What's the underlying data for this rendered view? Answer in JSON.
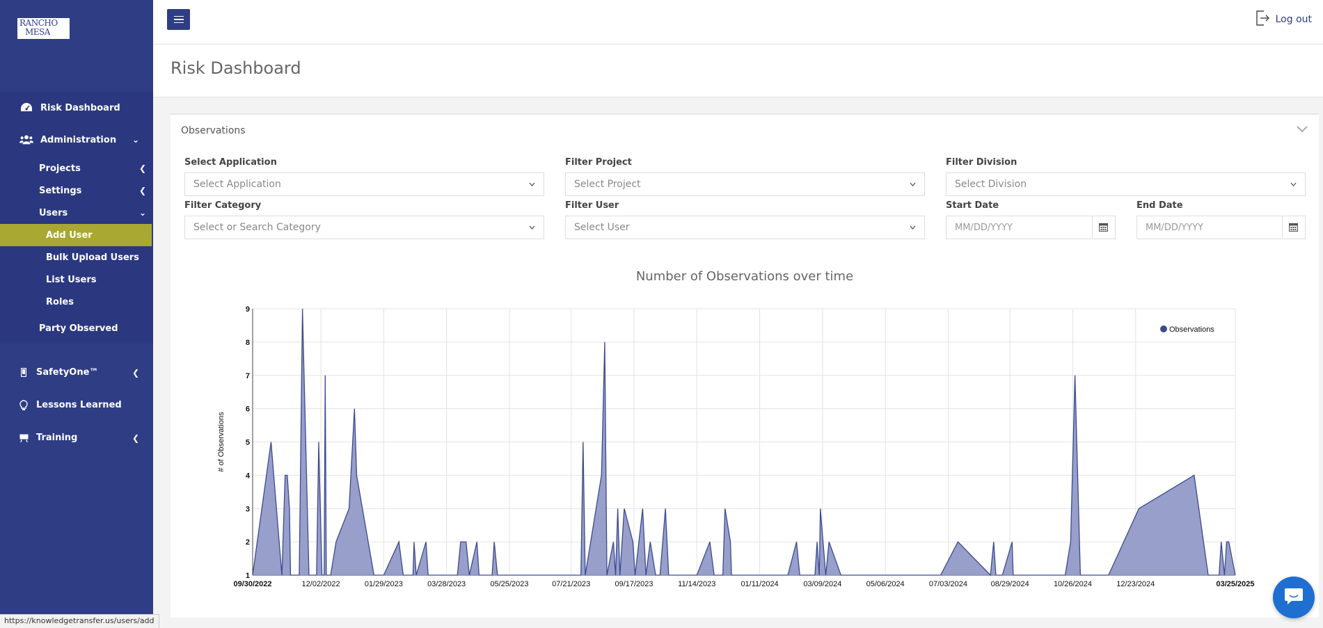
{
  "sidebar": {
    "logo_line1": "RANCHO",
    "logo_line2": "MESA",
    "risk_dashboard": "Risk Dashboard",
    "administration": "Administration",
    "projects": "Projects",
    "settings": "Settings",
    "users": "Users",
    "add_user": "Add User",
    "bulk_upload_users": "Bulk Upload Users",
    "list_users": "List Users",
    "roles": "Roles",
    "party_observed": "Party Observed",
    "safetyone": "SafetyOne™",
    "lessons_learned": "Lessons Learned",
    "training": "Training"
  },
  "topbar": {
    "logout": "Log out"
  },
  "page": {
    "title": "Risk Dashboard"
  },
  "card": {
    "title": "Observations",
    "filters": {
      "application_label": "Select Application",
      "application_value": "Select Application",
      "project_label": "Filter Project",
      "project_value": "Select Project",
      "division_label": "Filter Division",
      "division_value": "Select Division",
      "category_label": "Filter Category",
      "category_value": "Select or Search Category",
      "user_label": "Filter User",
      "user_value": "Select User",
      "start_label": "Start Date",
      "start_placeholder": "MM/DD/YYYY",
      "end_label": "End Date",
      "end_placeholder": "MM/DD/YYYY"
    }
  },
  "status_url": "https://knowledgetransfer.us/users/add",
  "chart_data": {
    "type": "area",
    "title": "Number of Observations over time",
    "xlabel": "",
    "ylabel": "# of Observations",
    "ylim": [
      1,
      9
    ],
    "yticks": [
      1,
      2,
      3,
      4,
      5,
      6,
      7,
      8,
      9
    ],
    "xlim": [
      "09/30/2022",
      "03/25/2025"
    ],
    "xticks": [
      "09/30/2022",
      "12/02/2022",
      "01/29/2023",
      "03/28/2023",
      "05/25/2023",
      "07/21/2023",
      "09/17/2023",
      "11/14/2023",
      "01/11/2024",
      "03/09/2024",
      "05/06/2024",
      "07/03/2024",
      "08/29/2024",
      "10/26/2024",
      "12/23/2024",
      "03/25/2025"
    ],
    "grid": true,
    "legend_position": "top-right",
    "color": "#3b4a8f",
    "fill": "#8c95c4",
    "series": [
      {
        "name": "Observations",
        "points": [
          [
            "09/30/2022",
            1
          ],
          [
            "10/17/2022",
            5
          ],
          [
            "10/27/2022",
            1
          ],
          [
            "10/30/2022",
            4
          ],
          [
            "11/01/2022",
            4
          ],
          [
            "11/03/2022",
            3
          ],
          [
            "11/04/2022",
            1
          ],
          [
            "11/12/2022",
            1
          ],
          [
            "11/15/2022",
            9
          ],
          [
            "11/21/2022",
            1
          ],
          [
            "11/28/2022",
            1
          ],
          [
            "11/30/2022",
            5
          ],
          [
            "12/03/2022",
            1
          ],
          [
            "12/05/2022",
            1
          ],
          [
            "12/06/2022",
            7
          ],
          [
            "12/07/2022",
            1
          ],
          [
            "12/11/2022",
            1
          ],
          [
            "12/16/2022",
            2
          ],
          [
            "12/28/2022",
            3
          ],
          [
            "01/02/2023",
            6
          ],
          [
            "01/04/2023",
            4
          ],
          [
            "01/20/2023",
            1
          ],
          [
            "01/29/2023",
            1
          ],
          [
            "02/12/2023",
            2
          ],
          [
            "02/16/2023",
            1
          ],
          [
            "02/25/2023",
            1
          ],
          [
            "02/26/2023",
            2
          ],
          [
            "02/28/2023",
            1
          ],
          [
            "03/09/2023",
            2
          ],
          [
            "03/11/2023",
            1
          ],
          [
            "04/07/2023",
            1
          ],
          [
            "04/10/2023",
            2
          ],
          [
            "04/15/2023",
            2
          ],
          [
            "04/18/2023",
            1
          ],
          [
            "04/25/2023",
            2
          ],
          [
            "04/27/2023",
            1
          ],
          [
            "05/09/2023",
            1
          ],
          [
            "05/11/2023",
            2
          ],
          [
            "05/14/2023",
            1
          ],
          [
            "07/30/2023",
            1
          ],
          [
            "08/01/2023",
            5
          ],
          [
            "08/03/2023",
            1
          ],
          [
            "08/18/2023",
            4
          ],
          [
            "08/21/2023",
            8
          ],
          [
            "08/23/2023",
            1
          ],
          [
            "08/29/2023",
            2
          ],
          [
            "08/31/2023",
            1
          ],
          [
            "09/02/2023",
            3
          ],
          [
            "09/04/2023",
            1
          ],
          [
            "09/08/2023",
            3
          ],
          [
            "09/16/2023",
            2
          ],
          [
            "09/18/2023",
            1
          ],
          [
            "09/25/2023",
            3
          ],
          [
            "09/28/2023",
            1
          ],
          [
            "10/02/2023",
            2
          ],
          [
            "10/07/2023",
            1
          ],
          [
            "10/11/2023",
            1
          ],
          [
            "10/16/2023",
            3
          ],
          [
            "10/19/2023",
            1
          ],
          [
            "11/14/2023",
            1
          ],
          [
            "11/26/2023",
            2
          ],
          [
            "11/30/2023",
            1
          ],
          [
            "12/08/2023",
            1
          ],
          [
            "12/10/2023",
            3
          ],
          [
            "12/15/2023",
            2
          ],
          [
            "12/16/2023",
            1
          ],
          [
            "02/06/2024",
            1
          ],
          [
            "02/14/2024",
            2
          ],
          [
            "02/17/2024",
            1
          ],
          [
            "03/02/2024",
            1
          ],
          [
            "03/04/2024",
            2
          ],
          [
            "03/06/2024",
            1
          ],
          [
            "03/07/2024",
            3
          ],
          [
            "03/12/2024",
            1
          ],
          [
            "03/15/2024",
            2
          ],
          [
            "03/26/2024",
            1
          ],
          [
            "06/26/2024",
            1
          ],
          [
            "07/12/2024",
            2
          ],
          [
            "08/11/2024",
            1
          ],
          [
            "08/14/2024",
            2
          ],
          [
            "08/16/2024",
            1
          ],
          [
            "08/22/2024",
            1
          ],
          [
            "08/31/2024",
            2
          ],
          [
            "09/01/2024",
            1
          ],
          [
            "10/19/2024",
            1
          ],
          [
            "10/24/2024",
            2
          ],
          [
            "10/28/2024",
            7
          ],
          [
            "11/02/2024",
            1
          ],
          [
            "11/28/2024",
            1
          ],
          [
            "12/26/2024",
            3
          ],
          [
            "02/15/2025",
            4
          ],
          [
            "02/28/2025",
            1
          ],
          [
            "03/10/2025",
            1
          ],
          [
            "03/12/2025",
            2
          ],
          [
            "03/15/2025",
            1
          ],
          [
            "03/17/2025",
            2
          ],
          [
            "03/19/2025",
            2
          ],
          [
            "03/25/2025",
            1
          ]
        ]
      }
    ]
  }
}
